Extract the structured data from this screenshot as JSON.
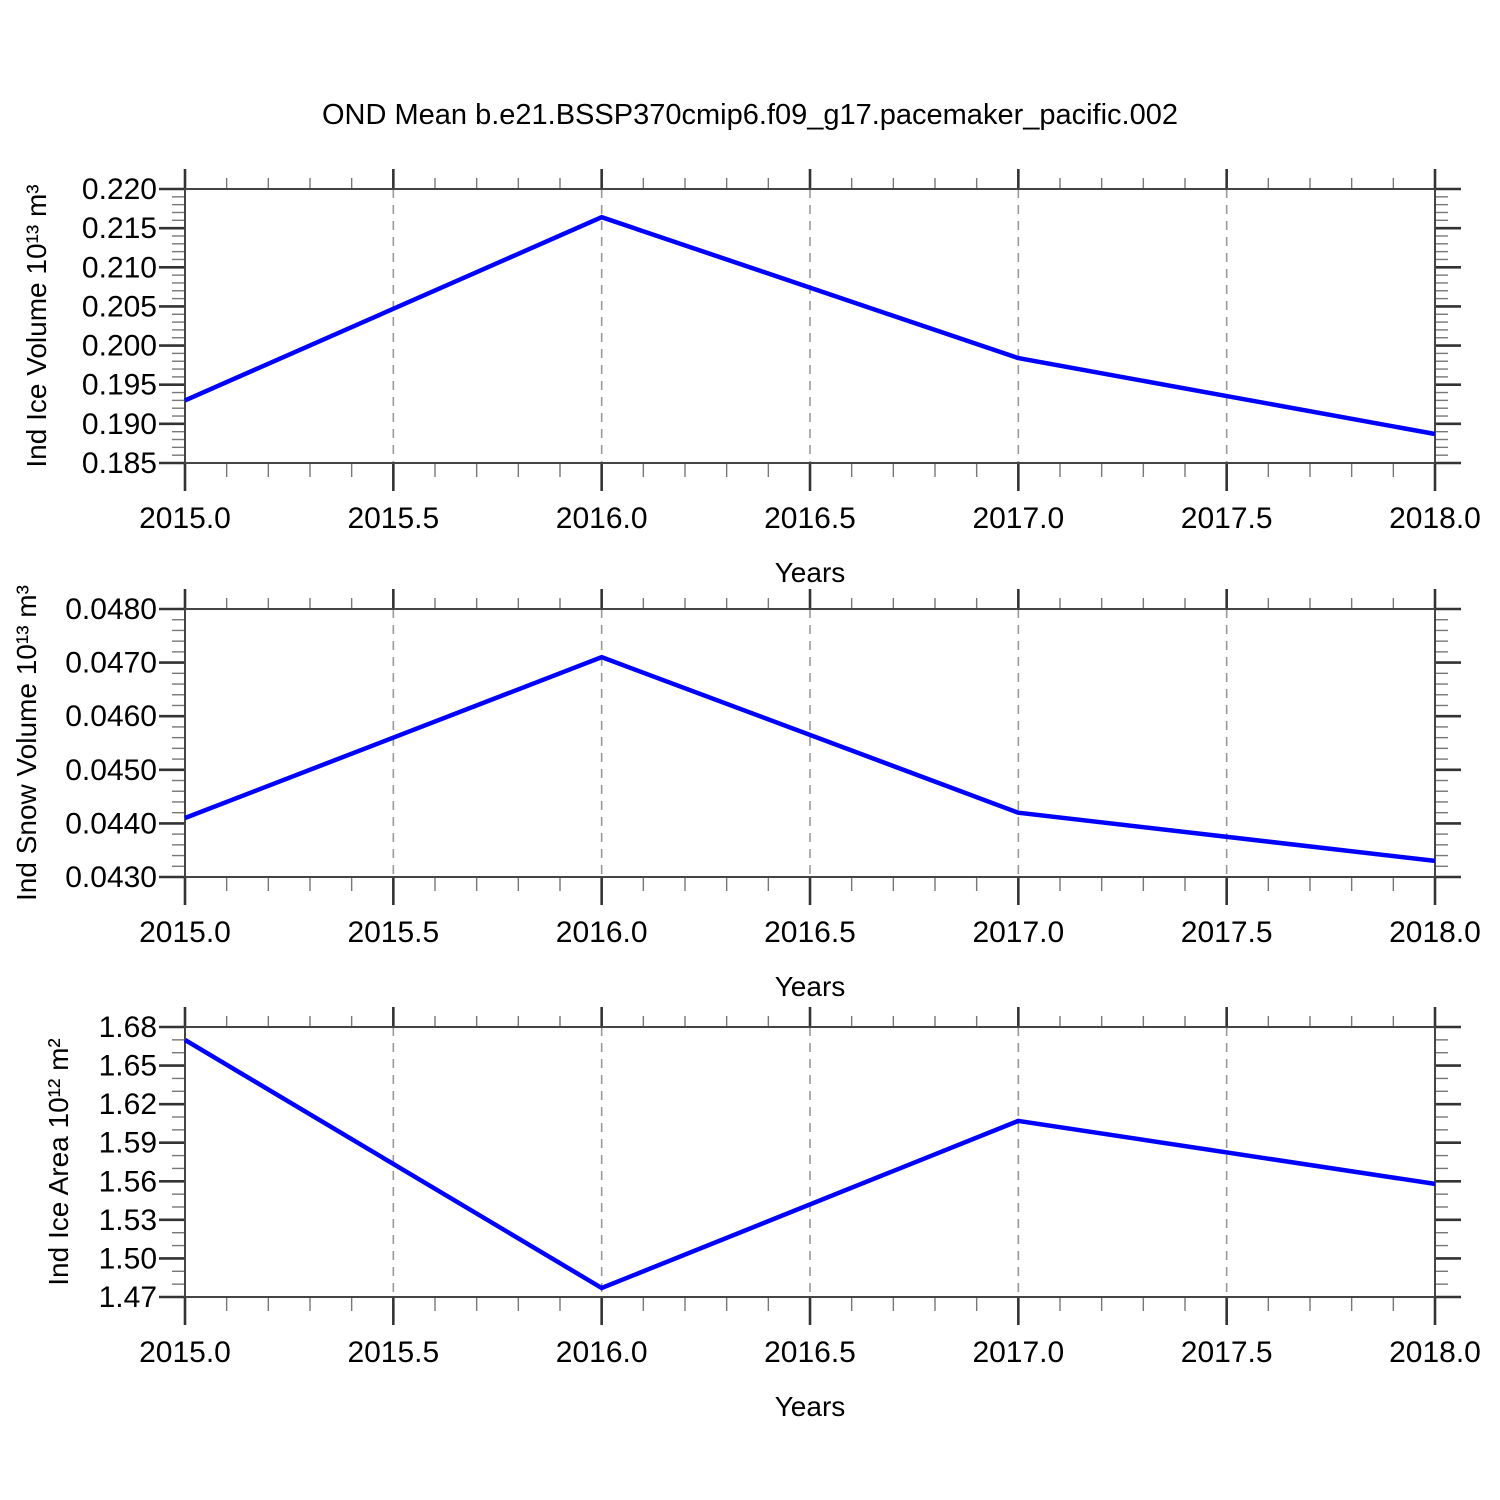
{
  "title": "OND Mean b.e21.BSSP370cmip6.f09_g17.pacemaker_pacific.002",
  "colors": {
    "line": "#0000ff",
    "grid": "#999999",
    "axis": "#444444",
    "tick_major": "#333333",
    "tick_minor": "#777777"
  },
  "chart_data": [
    {
      "type": "line",
      "name": "ind-ice-volume",
      "ylabel": "Ind Ice Volume 10¹³ m³",
      "xlabel": "Years",
      "x": [
        2015.0,
        2016.0,
        2017.0,
        2018.0
      ],
      "values": [
        0.193,
        0.2164,
        0.1984,
        0.1887
      ],
      "xlim": [
        2015.0,
        2018.0
      ],
      "ylim": [
        0.185,
        0.22
      ],
      "x_major_step": 0.5,
      "x_minor_step": 0.1,
      "y_major_step": 0.005,
      "y_minor_step": 0.001,
      "x_tick_labels": [
        "2015.0",
        "2015.5",
        "2016.0",
        "2016.5",
        "2017.0",
        "2017.5",
        "2018.0"
      ],
      "y_tick_labels": [
        "0.220",
        "0.215",
        "0.210",
        "0.205",
        "0.200",
        "0.195",
        "0.190",
        "0.185"
      ],
      "grid": "vertical-dashed-at-interior-major-x",
      "legend": "none"
    },
    {
      "type": "line",
      "name": "ind-snow-volume",
      "ylabel": "Ind Snow Volume 10¹³ m³",
      "xlabel": "Years",
      "x": [
        2015.0,
        2016.0,
        2017.0,
        2018.0
      ],
      "values": [
        0.0441,
        0.0471,
        0.0442,
        0.0433
      ],
      "xlim": [
        2015.0,
        2018.0
      ],
      "ylim": [
        0.043,
        0.048
      ],
      "x_major_step": 0.5,
      "x_minor_step": 0.1,
      "y_major_step": 0.001,
      "y_minor_step": 0.0002,
      "x_tick_labels": [
        "2015.0",
        "2015.5",
        "2016.0",
        "2016.5",
        "2017.0",
        "2017.5",
        "2018.0"
      ],
      "y_tick_labels": [
        "0.0480",
        "0.0470",
        "0.0460",
        "0.0450",
        "0.0440",
        "0.0430"
      ],
      "grid": "vertical-dashed-at-interior-major-x",
      "legend": "none"
    },
    {
      "type": "line",
      "name": "ind-ice-area",
      "ylabel": "Ind Ice Area 10¹² m²",
      "xlabel": "Years",
      "x": [
        2015.0,
        2016.0,
        2017.0,
        2018.0
      ],
      "values": [
        1.67,
        1.477,
        1.607,
        1.558
      ],
      "xlim": [
        2015.0,
        2018.0
      ],
      "ylim": [
        1.47,
        1.68
      ],
      "x_major_step": 0.5,
      "x_minor_step": 0.1,
      "y_major_step": 0.03,
      "y_minor_step": 0.01,
      "x_tick_labels": [
        "2015.0",
        "2015.5",
        "2016.0",
        "2016.5",
        "2017.0",
        "2017.5",
        "2018.0"
      ],
      "y_tick_labels": [
        "1.68",
        "1.65",
        "1.62",
        "1.59",
        "1.56",
        "1.53",
        "1.50",
        "1.47"
      ],
      "grid": "vertical-dashed-at-interior-major-x",
      "legend": "none"
    }
  ]
}
